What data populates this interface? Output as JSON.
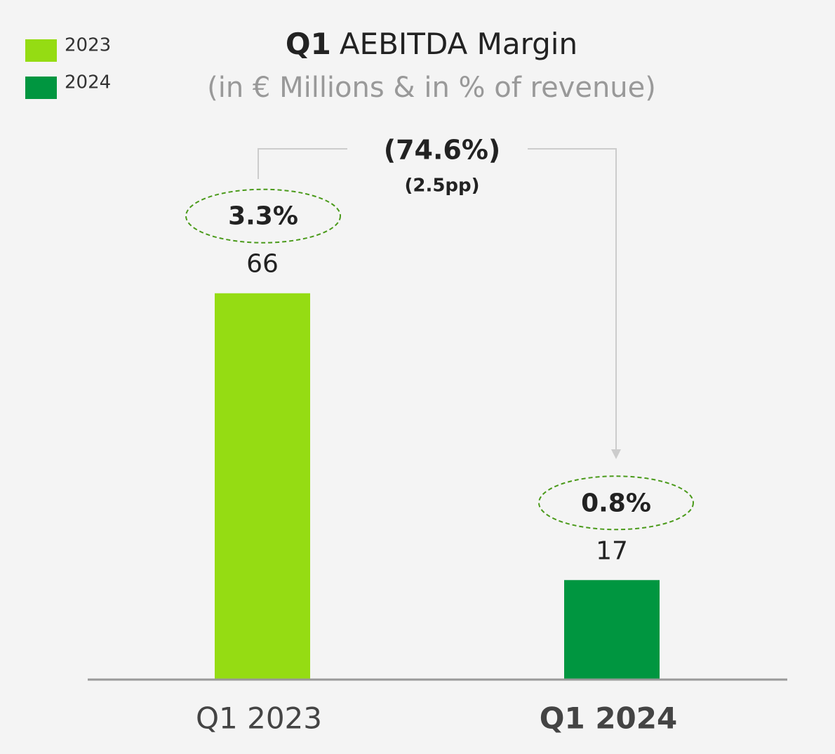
{
  "chart_data": {
    "type": "bar",
    "title": [
      "Q1",
      "AEBITDA Margin"
    ],
    "subtitle": "(in € Millions & in % of revenue)",
    "categories": [
      "Q1 2023",
      "Q1 2024"
    ],
    "series": [
      {
        "name": "2023",
        "color": "#95dc13",
        "values": [
          66,
          null
        ]
      },
      {
        "name": "2024",
        "color": "#009640",
        "values": [
          null,
          17
        ]
      }
    ],
    "annotations": {
      "margins": [
        "3.3%",
        "0.8%"
      ],
      "change": "(74.6%)",
      "change_detail": "(2.5pp)"
    },
    "ylim": [
      0,
      80
    ],
    "legend": "top-left"
  }
}
